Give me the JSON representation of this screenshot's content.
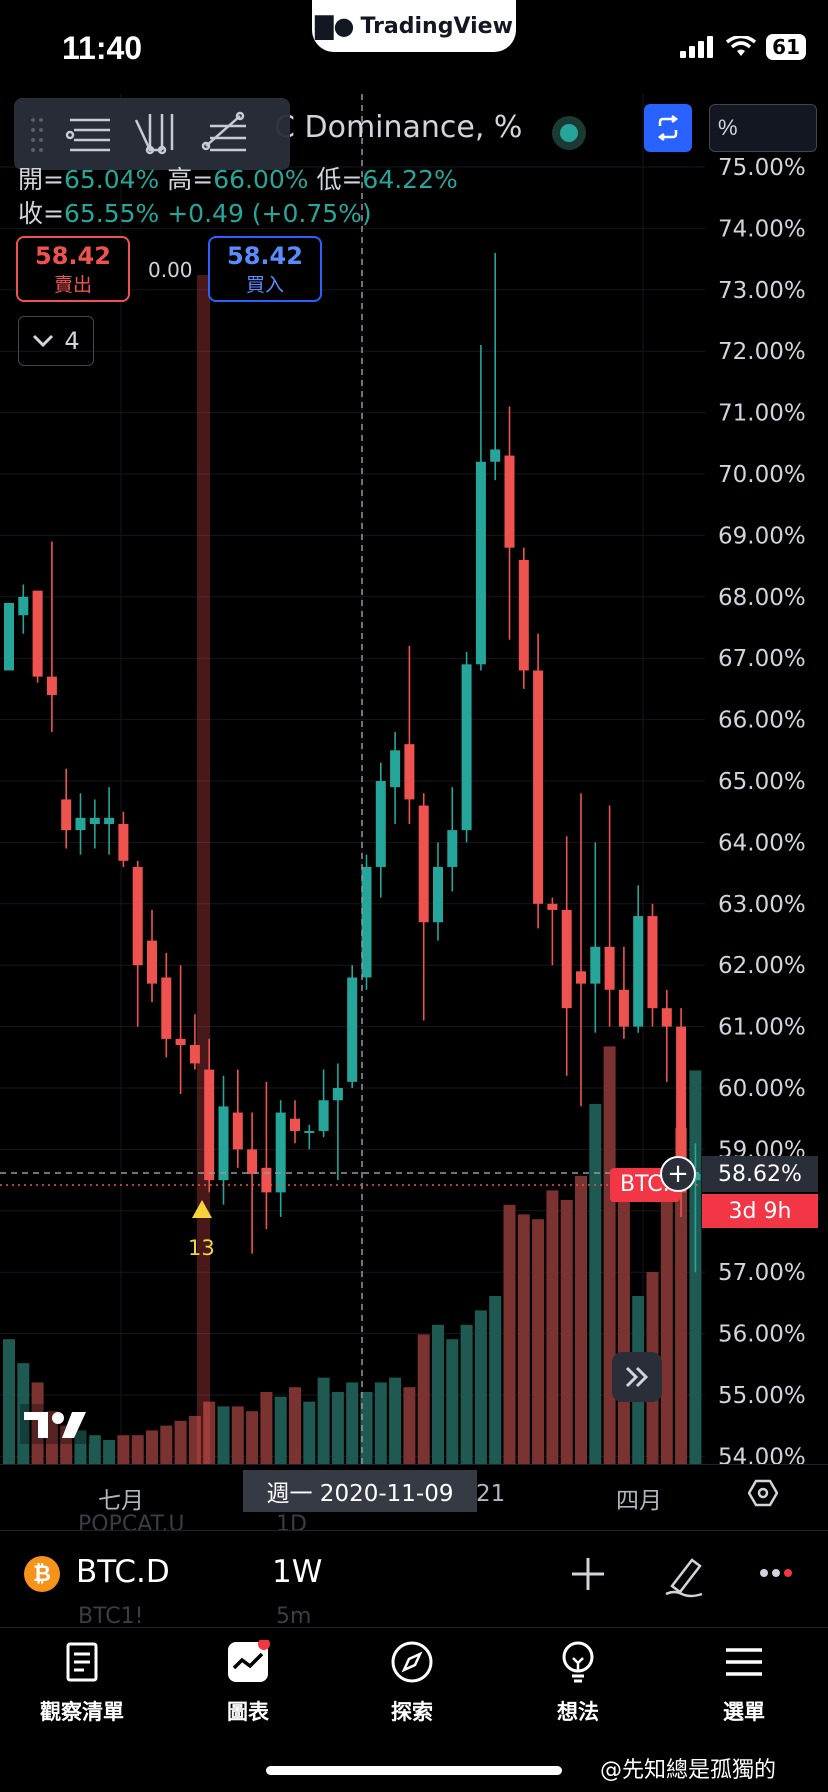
{
  "status_bar": {
    "time": "11:40",
    "battery": "61"
  },
  "brand": {
    "name": "TradingView"
  },
  "chart_header": {
    "title": "C Dominance, %",
    "unit_value": "%",
    "ohlc_line1": {
      "open_label": "開=",
      "open": "65.04%",
      "high_label": "高=",
      "high": "66.00%",
      "low_label": "低=",
      "low": "64.22%"
    },
    "ohlc_line2": {
      "close_label": "收=",
      "close": "65.55%",
      "change": "+0.49 (+0.75%)"
    }
  },
  "trade": {
    "sell_price": "58.42",
    "sell_label": "賣出",
    "spread": "0.00",
    "buy_price": "58.42",
    "buy_label": "買入"
  },
  "indicators": {
    "count": "4"
  },
  "price_axis": {
    "labels": [
      "75.00%",
      "74.00%",
      "73.00%",
      "72.00%",
      "71.00%",
      "70.00%",
      "69.00%",
      "68.00%",
      "67.00%",
      "66.00%",
      "65.00%",
      "64.00%",
      "63.00%",
      "62.00%",
      "61.00%",
      "60.00%",
      "59.00%",
      "58.00%",
      "57.00%",
      "56.00%",
      "55.00%",
      "54.00%"
    ],
    "current_price": "58.62%",
    "countdown": "3d 9h",
    "series_badge": "BTC.D"
  },
  "marker": {
    "count": "13"
  },
  "time_axis": {
    "labels": [
      "七月",
      "21",
      "四月"
    ],
    "crosshair_date": "週一 2020-11-09"
  },
  "ghost_list": {
    "item1_symbol": "POPCAT.U",
    "item1_interval": "1D",
    "item2_symbol": "BTC1!",
    "item2_interval": "5m"
  },
  "symbol_bar": {
    "symbol": "BTC.D",
    "interval": "1W",
    "btc_glyph": "₿"
  },
  "bottom_nav": [
    {
      "label": "觀察清單",
      "icon": "watchlist-icon"
    },
    {
      "label": "圖表",
      "icon": "chart-icon"
    },
    {
      "label": "探索",
      "icon": "compass-icon"
    },
    {
      "label": "想法",
      "icon": "ideas-icon"
    },
    {
      "label": "選單",
      "icon": "menu-icon"
    }
  ],
  "watermark": "@先知總是孤獨的",
  "colors": {
    "up": "#26a69a",
    "down": "#ef5350",
    "accent": "#2962ff"
  },
  "chart_data": {
    "type": "candlestick",
    "ylim": [
      54,
      75.5
    ],
    "candles": [
      {
        "o": 66.8,
        "h": 67.8,
        "l": 66.8,
        "c": 67.9
      },
      {
        "o": 67.7,
        "h": 68.2,
        "l": 67.4,
        "c": 68.0
      },
      {
        "o": 68.1,
        "h": 68.1,
        "l": 66.6,
        "c": 66.7
      },
      {
        "o": 66.7,
        "h": 68.9,
        "l": 65.8,
        "c": 66.4
      },
      {
        "o": 64.7,
        "h": 65.2,
        "l": 63.9,
        "c": 64.2
      },
      {
        "o": 64.2,
        "h": 64.8,
        "l": 63.8,
        "c": 64.4
      },
      {
        "o": 64.3,
        "h": 64.7,
        "l": 63.9,
        "c": 64.4
      },
      {
        "o": 64.3,
        "h": 64.9,
        "l": 63.8,
        "c": 64.4
      },
      {
        "o": 64.3,
        "h": 64.5,
        "l": 63.6,
        "c": 63.7
      },
      {
        "o": 63.6,
        "h": 63.7,
        "l": 61.0,
        "c": 62.0
      },
      {
        "o": 62.4,
        "h": 62.9,
        "l": 61.4,
        "c": 61.7
      },
      {
        "o": 61.8,
        "h": 62.2,
        "l": 60.5,
        "c": 60.8
      },
      {
        "o": 60.8,
        "h": 62.0,
        "l": 59.9,
        "c": 60.7
      },
      {
        "o": 60.7,
        "h": 61.2,
        "l": 60.3,
        "c": 60.4
      },
      {
        "o": 60.3,
        "h": 60.8,
        "l": 58.3,
        "c": 58.5
      },
      {
        "o": 58.5,
        "h": 60.2,
        "l": 58.1,
        "c": 59.7
      },
      {
        "o": 59.6,
        "h": 60.3,
        "l": 58.7,
        "c": 59.0
      },
      {
        "o": 59.0,
        "h": 59.6,
        "l": 57.3,
        "c": 58.6
      },
      {
        "o": 58.7,
        "h": 60.1,
        "l": 57.7,
        "c": 58.3
      },
      {
        "o": 58.3,
        "h": 59.8,
        "l": 57.9,
        "c": 59.6
      },
      {
        "o": 59.5,
        "h": 59.8,
        "l": 59.1,
        "c": 59.3
      },
      {
        "o": 59.3,
        "h": 59.4,
        "l": 59.0,
        "c": 59.3
      },
      {
        "o": 59.3,
        "h": 60.3,
        "l": 59.2,
        "c": 59.8
      },
      {
        "o": 59.8,
        "h": 60.4,
        "l": 58.5,
        "c": 60.0
      },
      {
        "o": 60.1,
        "h": 62.0,
        "l": 60.0,
        "c": 61.8
      },
      {
        "o": 61.8,
        "h": 63.8,
        "l": 61.6,
        "c": 63.6
      },
      {
        "o": 63.6,
        "h": 65.3,
        "l": 63.1,
        "c": 65.0
      },
      {
        "o": 64.9,
        "h": 65.8,
        "l": 64.3,
        "c": 65.5
      },
      {
        "o": 65.6,
        "h": 67.2,
        "l": 64.3,
        "c": 64.7
      },
      {
        "o": 64.6,
        "h": 64.8,
        "l": 61.1,
        "c": 62.7
      },
      {
        "o": 62.7,
        "h": 64.0,
        "l": 62.4,
        "c": 63.6
      },
      {
        "o": 63.6,
        "h": 64.9,
        "l": 63.2,
        "c": 64.2
      },
      {
        "o": 64.2,
        "h": 67.1,
        "l": 64.0,
        "c": 66.9
      },
      {
        "o": 66.9,
        "h": 72.1,
        "l": 66.8,
        "c": 70.2
      },
      {
        "o": 70.2,
        "h": 73.6,
        "l": 69.9,
        "c": 70.4
      },
      {
        "o": 70.3,
        "h": 71.1,
        "l": 67.3,
        "c": 68.8
      },
      {
        "o": 68.6,
        "h": 68.8,
        "l": 66.5,
        "c": 66.8
      },
      {
        "o": 66.8,
        "h": 67.4,
        "l": 62.6,
        "c": 63.0
      },
      {
        "o": 63.0,
        "h": 63.1,
        "l": 62.0,
        "c": 62.9
      },
      {
        "o": 62.9,
        "h": 64.1,
        "l": 60.2,
        "c": 61.3
      },
      {
        "o": 61.9,
        "h": 64.8,
        "l": 59.7,
        "c": 61.7
      },
      {
        "o": 61.7,
        "h": 64.0,
        "l": 60.9,
        "c": 62.3
      },
      {
        "o": 62.3,
        "h": 64.6,
        "l": 61.0,
        "c": 61.6
      },
      {
        "o": 61.6,
        "h": 62.3,
        "l": 60.8,
        "c": 61.0
      },
      {
        "o": 61.0,
        "h": 63.3,
        "l": 60.9,
        "c": 62.8
      },
      {
        "o": 62.8,
        "h": 63.0,
        "l": 61.0,
        "c": 61.3
      },
      {
        "o": 61.3,
        "h": 61.6,
        "l": 60.1,
        "c": 61.0
      },
      {
        "o": 61.0,
        "h": 61.3,
        "l": 57.9,
        "c": 58.3
      },
      {
        "o": 58.5,
        "h": 59.1,
        "l": 57.0,
        "c": 58.6
      }
    ],
    "volume_relative": [
      0.26,
      0.21,
      0.17,
      0.11,
      0.08,
      0.07,
      0.06,
      0.05,
      0.06,
      0.06,
      0.07,
      0.08,
      0.09,
      0.1,
      0.13,
      0.12,
      0.12,
      0.11,
      0.15,
      0.14,
      0.16,
      0.13,
      0.18,
      0.15,
      0.17,
      0.15,
      0.17,
      0.18,
      0.16,
      0.27,
      0.29,
      0.26,
      0.29,
      0.32,
      0.35,
      0.54,
      0.52,
      0.51,
      0.57,
      0.55,
      0.6,
      0.75,
      0.87,
      0.56,
      0.35,
      0.4,
      0.6,
      0.7,
      0.82
    ],
    "last_price": 58.62,
    "crosshair_price": 58.62
  }
}
